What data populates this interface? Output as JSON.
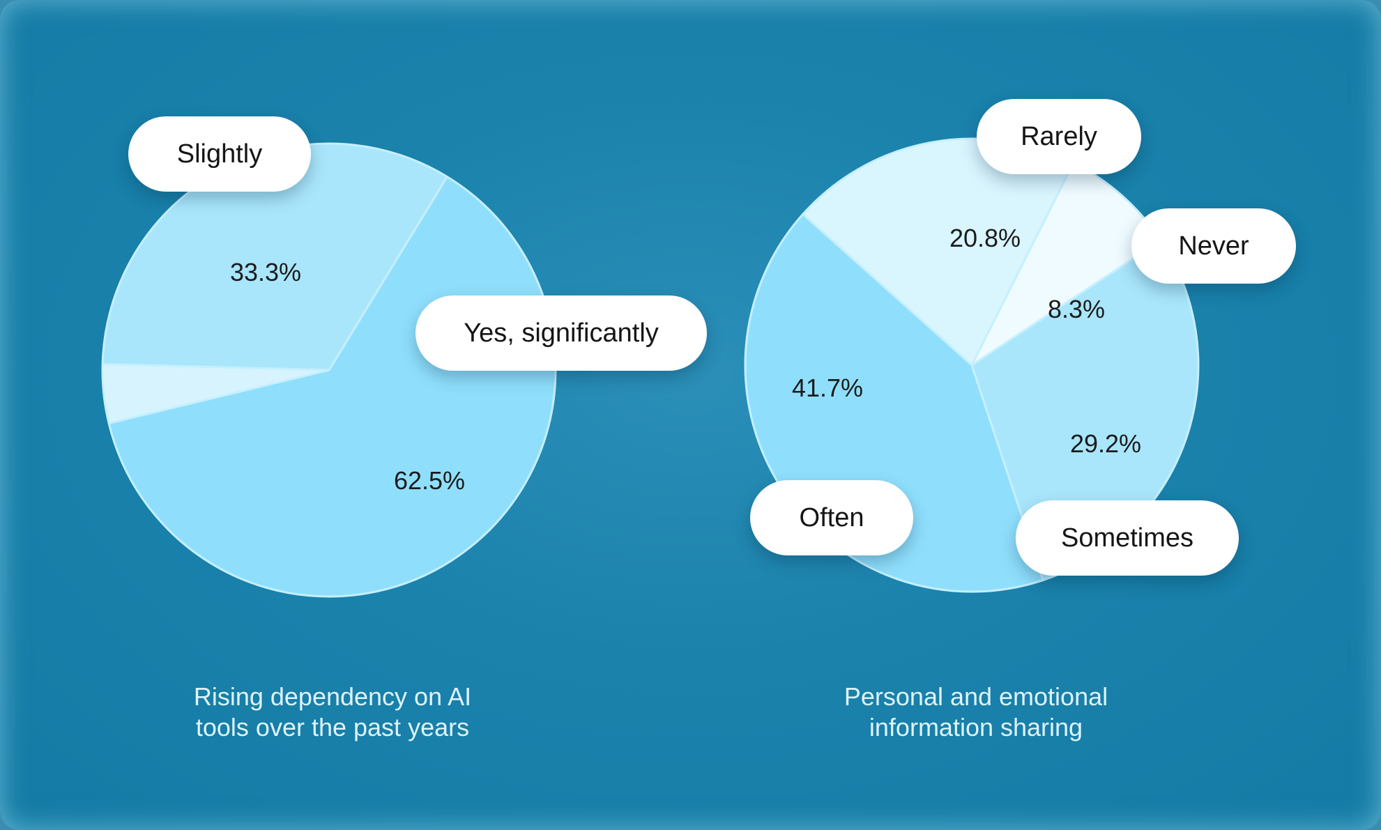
{
  "chart_data": [
    {
      "type": "pie",
      "caption": [
        "Rising dependency on AI",
        "tools over the past years"
      ],
      "slices": [
        {
          "label": "Slightly",
          "value": 33.3,
          "color": "#a9e6fb"
        },
        {
          "label": "Yes, significantly",
          "value": 62.5,
          "color": "#8fdffc"
        },
        {
          "label": "",
          "value": 4.2,
          "color": "#d7f4fe"
        }
      ],
      "value_labels": [
        "33.3%",
        "62.5%",
        ""
      ]
    },
    {
      "type": "pie",
      "caption": [
        "Personal and emotional",
        "information sharing"
      ],
      "slices": [
        {
          "label": "Rarely",
          "value": 20.8,
          "color": "#d9f5fe"
        },
        {
          "label": "Never",
          "value": 8.3,
          "color": "#effbff"
        },
        {
          "label": "Sometimes",
          "value": 29.2,
          "color": "#a9e6fb"
        },
        {
          "label": "Often",
          "value": 41.7,
          "color": "#8fdffc"
        }
      ],
      "value_labels": [
        "20.8%",
        "8.3%",
        "29.2%",
        "41.7%"
      ]
    }
  ],
  "colors": {
    "background": "#1a82ab",
    "pill": "#ffffff",
    "slice_stroke": "#c6efff"
  }
}
